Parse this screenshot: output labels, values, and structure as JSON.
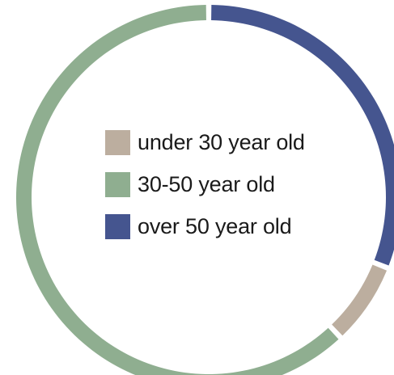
{
  "chart_data": {
    "type": "pie",
    "style": "donut",
    "categories": [
      "over 50 year old",
      "under 30 year old",
      "30-50 year old"
    ],
    "values": [
      31,
      7,
      62
    ],
    "unit": "percent",
    "colors": [
      "#45558f",
      "#bcae9f",
      "#8fae90"
    ],
    "legend_position": "center",
    "title": ""
  },
  "legend": {
    "items": [
      {
        "label": "under 30 year old",
        "color": "#bcae9f"
      },
      {
        "label": "30-50 year old",
        "color": "#8fae90"
      },
      {
        "label": "over 50 year old",
        "color": "#45558f"
      }
    ]
  }
}
